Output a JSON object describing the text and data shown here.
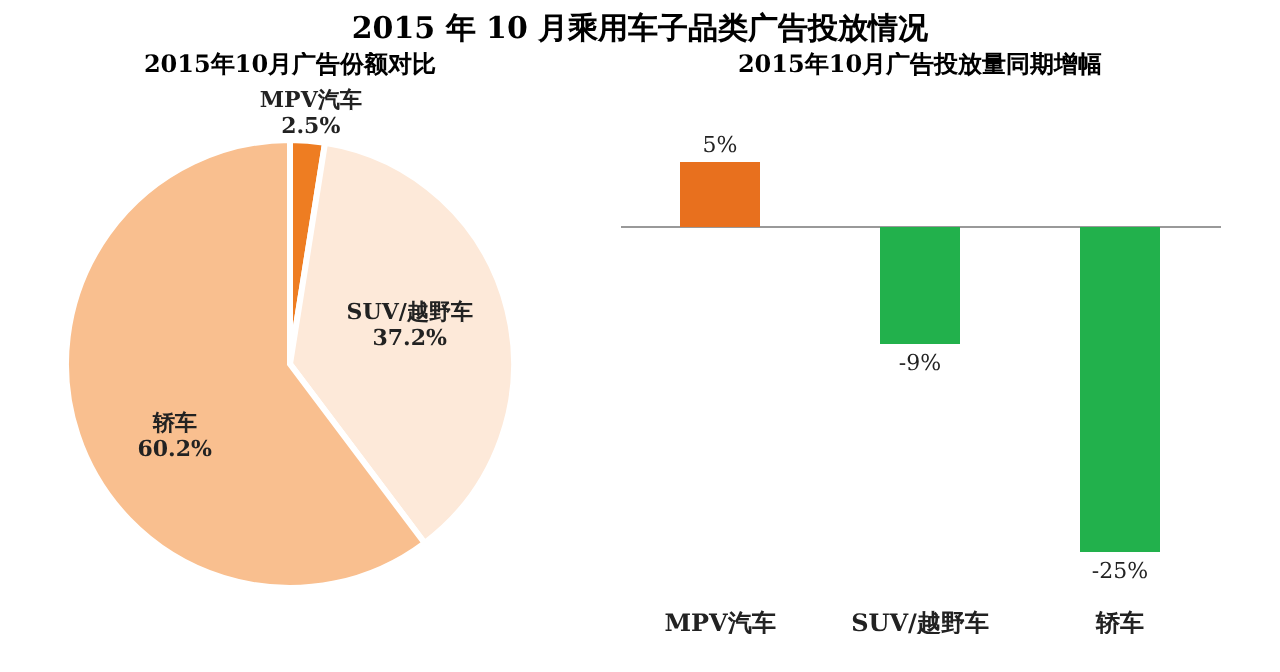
{
  "chart_data": [
    {
      "type": "pie",
      "title": "2015 年 10 月乘用车子品类广告投放情况",
      "subtitle": "2015年10月广告份额对比",
      "categories": [
        "MPV汽车",
        "SUV/越野车",
        "轿车"
      ],
      "values": [
        2.5,
        37.2,
        60.2
      ],
      "colors": [
        "#ee7d22",
        "#fde9d9",
        "#f9bf8f"
      ],
      "value_labels": [
        "2.5%",
        "37.2%",
        "60.2%"
      ]
    },
    {
      "type": "bar",
      "title": "2015年10月广告投放量同期增幅",
      "categories": [
        "MPV汽车",
        "SUV/越野车",
        "轿车"
      ],
      "values": [
        5,
        -9,
        -25
      ],
      "colors": [
        "#e8701e",
        "#22b14c",
        "#22b14c"
      ],
      "value_labels": [
        "5%",
        "-9%",
        "-25%"
      ]
    }
  ]
}
